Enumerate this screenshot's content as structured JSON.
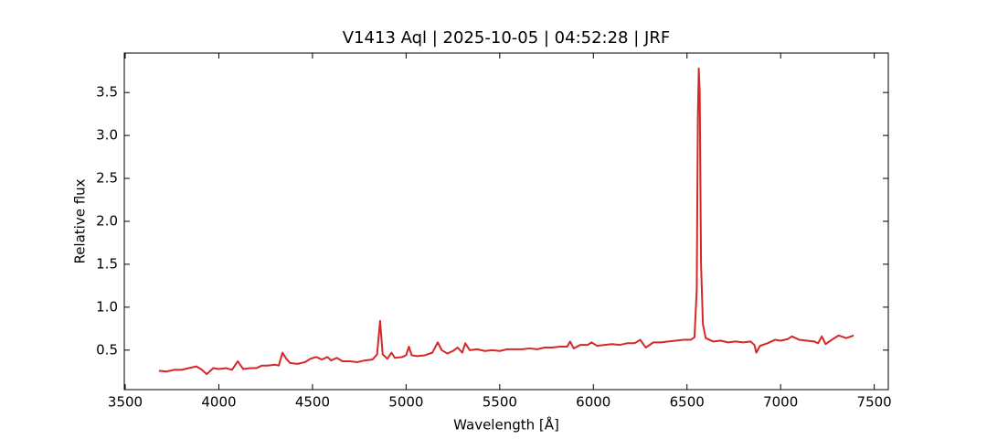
{
  "chart_data": {
    "type": "line",
    "title": "V1413 Aql | 2025-10-05 | 04:52:28 | JRF",
    "x_label": "Wavelength [Å]",
    "y_label": "Relative flux",
    "xlim": [
      3495,
      7575
    ],
    "ylim": [
      0.04,
      3.96
    ],
    "xticks": [
      3500,
      4000,
      4500,
      5000,
      5500,
      6000,
      6500,
      7000,
      7500
    ],
    "yticks": [
      0.5,
      {
        "value": 1,
        "label": "1.0"
      },
      1.5,
      {
        "value": 2,
        "label": "2.0"
      },
      2.5,
      {
        "value": 3,
        "label": "3.0"
      },
      3.5
    ],
    "grid": false,
    "series": [
      {
        "color": "#d62728",
        "x": [
          3680,
          3720,
          3760,
          3800,
          3840,
          3880,
          3910,
          3935,
          3970,
          4000,
          4040,
          4070,
          4101,
          4130,
          4170,
          4200,
          4230,
          4260,
          4300,
          4320,
          4340,
          4360,
          4380,
          4420,
          4460,
          4490,
          4520,
          4550,
          4580,
          4600,
          4630,
          4660,
          4700,
          4740,
          4780,
          4820,
          4845,
          4861,
          4875,
          4900,
          4922,
          4940,
          4980,
          5000,
          5015,
          5030,
          5060,
          5100,
          5140,
          5169,
          5190,
          5220,
          5250,
          5275,
          5300,
          5316,
          5340,
          5380,
          5420,
          5460,
          5500,
          5540,
          5580,
          5620,
          5660,
          5700,
          5740,
          5780,
          5820,
          5860,
          5876,
          5895,
          5930,
          5970,
          5990,
          6020,
          6060,
          6100,
          6140,
          6180,
          6220,
          6250,
          6280,
          6320,
          6360,
          6400,
          6440,
          6480,
          6520,
          6540,
          6552,
          6558,
          6563,
          6568,
          6575,
          6585,
          6600,
          6640,
          6680,
          6720,
          6760,
          6800,
          6840,
          6860,
          6870,
          6890,
          6930,
          6970,
          7000,
          7040,
          7060,
          7100,
          7140,
          7180,
          7200,
          7220,
          7240,
          7280,
          7310,
          7350,
          7390
        ],
        "values": [
          0.26,
          0.25,
          0.27,
          0.27,
          0.29,
          0.31,
          0.27,
          0.22,
          0.29,
          0.28,
          0.29,
          0.27,
          0.37,
          0.28,
          0.29,
          0.29,
          0.32,
          0.32,
          0.33,
          0.32,
          0.47,
          0.4,
          0.35,
          0.34,
          0.36,
          0.4,
          0.42,
          0.39,
          0.42,
          0.38,
          0.41,
          0.37,
          0.37,
          0.36,
          0.38,
          0.39,
          0.45,
          0.84,
          0.45,
          0.4,
          0.47,
          0.41,
          0.42,
          0.44,
          0.54,
          0.44,
          0.43,
          0.44,
          0.47,
          0.59,
          0.5,
          0.46,
          0.49,
          0.53,
          0.47,
          0.58,
          0.5,
          0.51,
          0.49,
          0.5,
          0.49,
          0.51,
          0.51,
          0.51,
          0.52,
          0.51,
          0.53,
          0.53,
          0.54,
          0.54,
          0.6,
          0.52,
          0.56,
          0.56,
          0.59,
          0.55,
          0.56,
          0.57,
          0.56,
          0.58,
          0.58,
          0.62,
          0.53,
          0.59,
          0.59,
          0.6,
          0.61,
          0.62,
          0.62,
          0.65,
          1.2,
          3.2,
          3.78,
          3.5,
          1.5,
          0.8,
          0.64,
          0.6,
          0.61,
          0.59,
          0.6,
          0.59,
          0.6,
          0.56,
          0.47,
          0.55,
          0.58,
          0.62,
          0.61,
          0.63,
          0.66,
          0.62,
          0.61,
          0.6,
          0.58,
          0.66,
          0.57,
          0.63,
          0.67,
          0.64,
          0.67
        ]
      }
    ]
  }
}
